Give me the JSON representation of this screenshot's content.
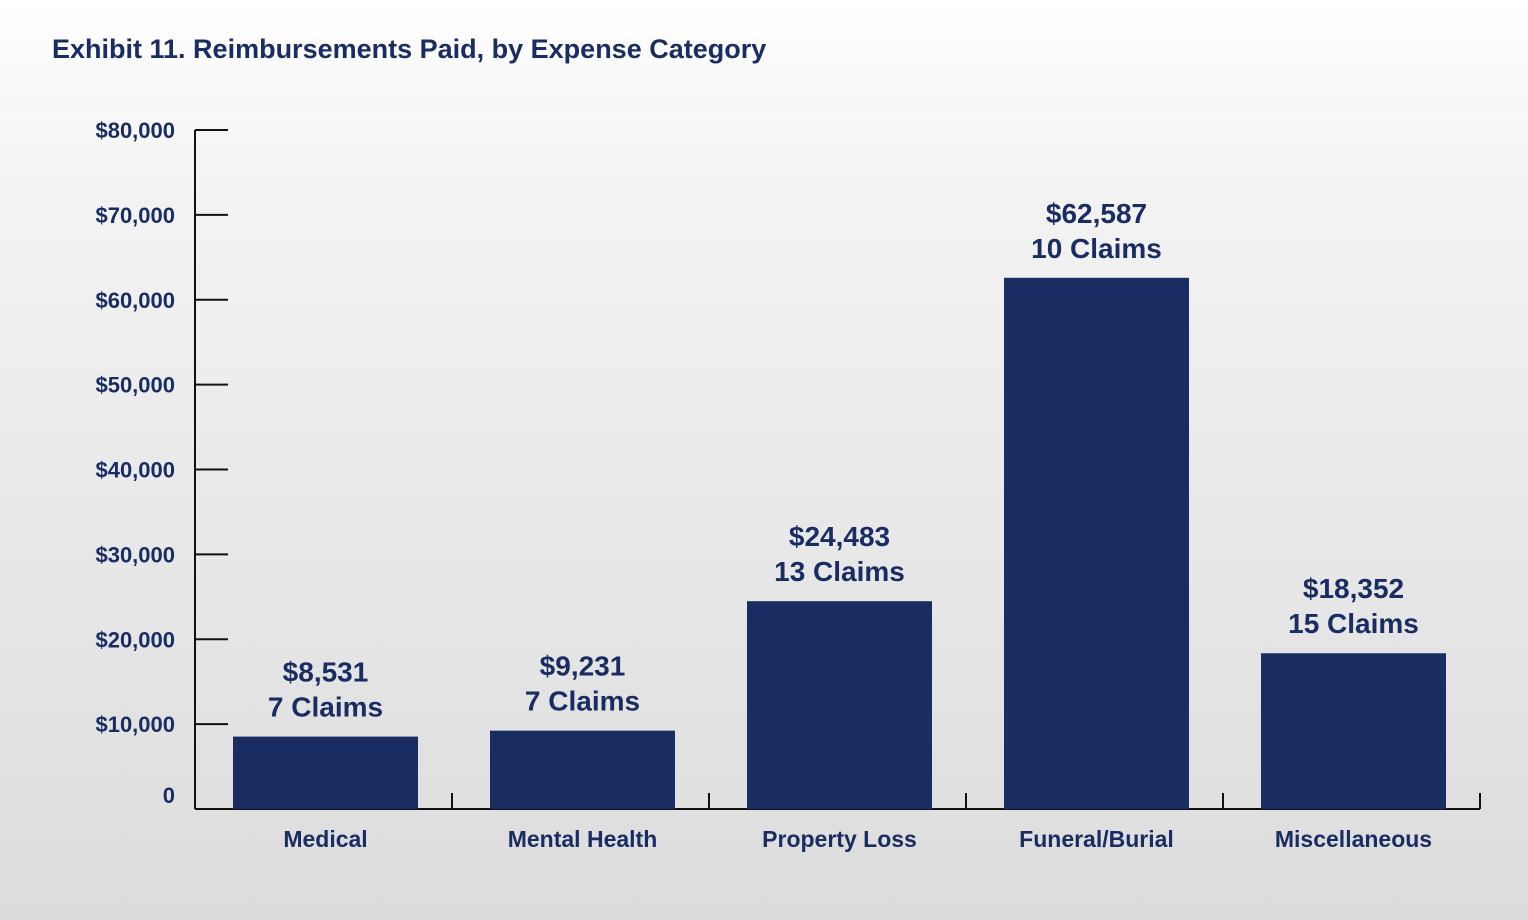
{
  "title": "Exhibit 11. Reimbursements Paid, by Expense Category",
  "colors": {
    "bar": "#1a2d63",
    "text": "#1a2d63",
    "axis": "#111111"
  },
  "chart_data": {
    "type": "bar",
    "title": "Exhibit 11. Reimbursements Paid, by Expense Category",
    "xlabel": "",
    "ylabel": "",
    "ylim": [
      0,
      80000
    ],
    "grid": false,
    "y_ticks": [
      0,
      10000,
      20000,
      30000,
      40000,
      50000,
      60000,
      70000,
      80000
    ],
    "y_tick_labels": [
      "0",
      "$10,000",
      "$20,000",
      "$30,000",
      "$40,000",
      "$50,000",
      "$60,000",
      "$70,000",
      "$80,000"
    ],
    "categories": [
      "Medical",
      "Mental Health",
      "Property Loss",
      "Funeral/Burial",
      "Miscellaneous"
    ],
    "values": [
      8531,
      9231,
      24483,
      62587,
      18352
    ],
    "value_labels": [
      "$8,531",
      "$9,231",
      "$24,483",
      "$62,587",
      "$18,352"
    ],
    "claim_labels": [
      "7 Claims",
      "7 Claims",
      "13 Claims",
      "10 Claims",
      "15 Claims"
    ]
  }
}
